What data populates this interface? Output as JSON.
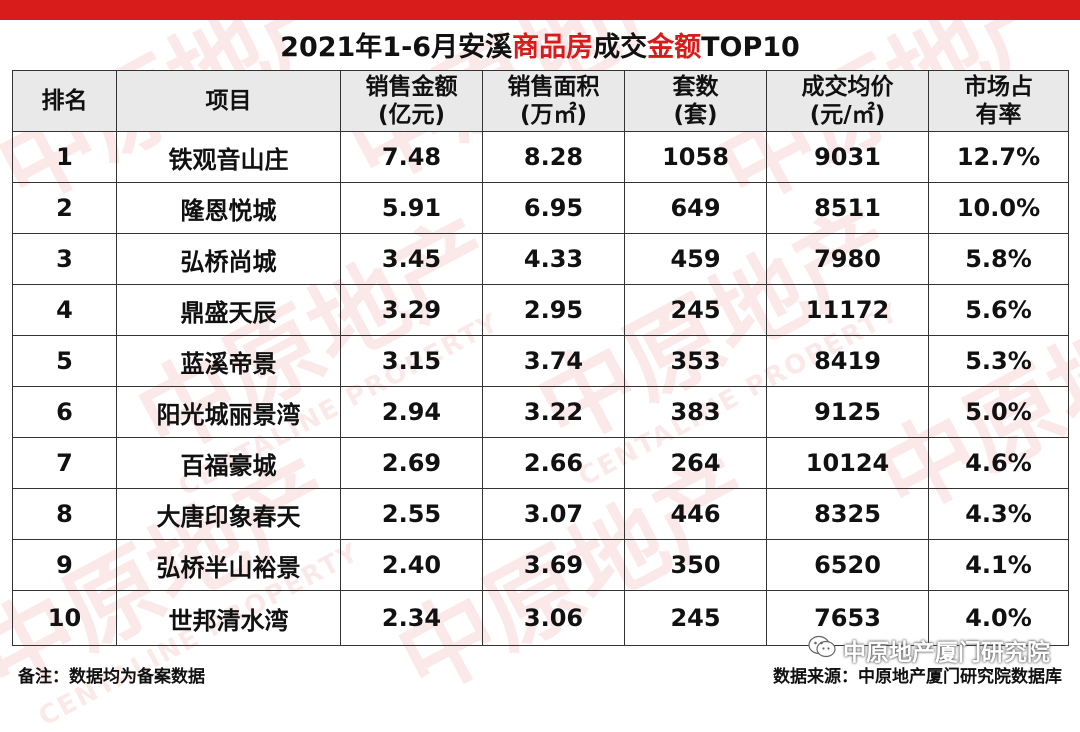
{
  "title": {
    "prefix": "2021年1-6月安溪",
    "highlight1": "商品房",
    "middle": "成交",
    "highlight2": "金额",
    "suffix": "TOP10"
  },
  "headers": {
    "rank": "排名",
    "project": "项目",
    "amount_1": "销售金额",
    "amount_2": "(亿元)",
    "area_1": "销售面积",
    "area_2": "(万㎡)",
    "units_1": "套数",
    "units_2": "(套)",
    "price_1": "成交均价",
    "price_2": "(元/㎡)",
    "share_1": "市场占",
    "share_2": "有率"
  },
  "rows": [
    {
      "rank": "1",
      "project": "铁观音山庄",
      "amount": "7.48",
      "area": "8.28",
      "units": "1058",
      "price": "9031",
      "share": "12.7%"
    },
    {
      "rank": "2",
      "project": "隆恩悦城",
      "amount": "5.91",
      "area": "6.95",
      "units": "649",
      "price": "8511",
      "share": "10.0%"
    },
    {
      "rank": "3",
      "project": "弘桥尚城",
      "amount": "3.45",
      "area": "4.33",
      "units": "459",
      "price": "7980",
      "share": "5.8%"
    },
    {
      "rank": "4",
      "project": "鼎盛天辰",
      "amount": "3.29",
      "area": "2.95",
      "units": "245",
      "price": "11172",
      "share": "5.6%"
    },
    {
      "rank": "5",
      "project": "蓝溪帝景",
      "amount": "3.15",
      "area": "3.74",
      "units": "353",
      "price": "8419",
      "share": "5.3%"
    },
    {
      "rank": "6",
      "project": "阳光城丽景湾",
      "amount": "2.94",
      "area": "3.22",
      "units": "383",
      "price": "9125",
      "share": "5.0%"
    },
    {
      "rank": "7",
      "project": "百福豪城",
      "amount": "2.69",
      "area": "2.66",
      "units": "264",
      "price": "10124",
      "share": "4.6%"
    },
    {
      "rank": "8",
      "project": "大唐印象春天",
      "amount": "2.55",
      "area": "3.07",
      "units": "446",
      "price": "8325",
      "share": "4.3%"
    },
    {
      "rank": "9",
      "project": "弘桥半山裕景",
      "amount": "2.40",
      "area": "3.69",
      "units": "350",
      "price": "6520",
      "share": "4.1%"
    },
    {
      "rank": "10",
      "project": "世邦清水湾",
      "amount": "2.34",
      "area": "3.06",
      "units": "245",
      "price": "7653",
      "share": "4.0%"
    }
  ],
  "footer": {
    "note": "备注：数据均为备案数据",
    "source": "数据来源：中原地产厦门研究院数据库"
  },
  "wechat": {
    "icon": "wechat-icon",
    "label": "中原地产厦门研究院"
  },
  "watermark": {
    "text": "中原地产",
    "sub": "CENTALINE PROPERTY"
  },
  "colors": {
    "accent": "#d81c1c"
  }
}
